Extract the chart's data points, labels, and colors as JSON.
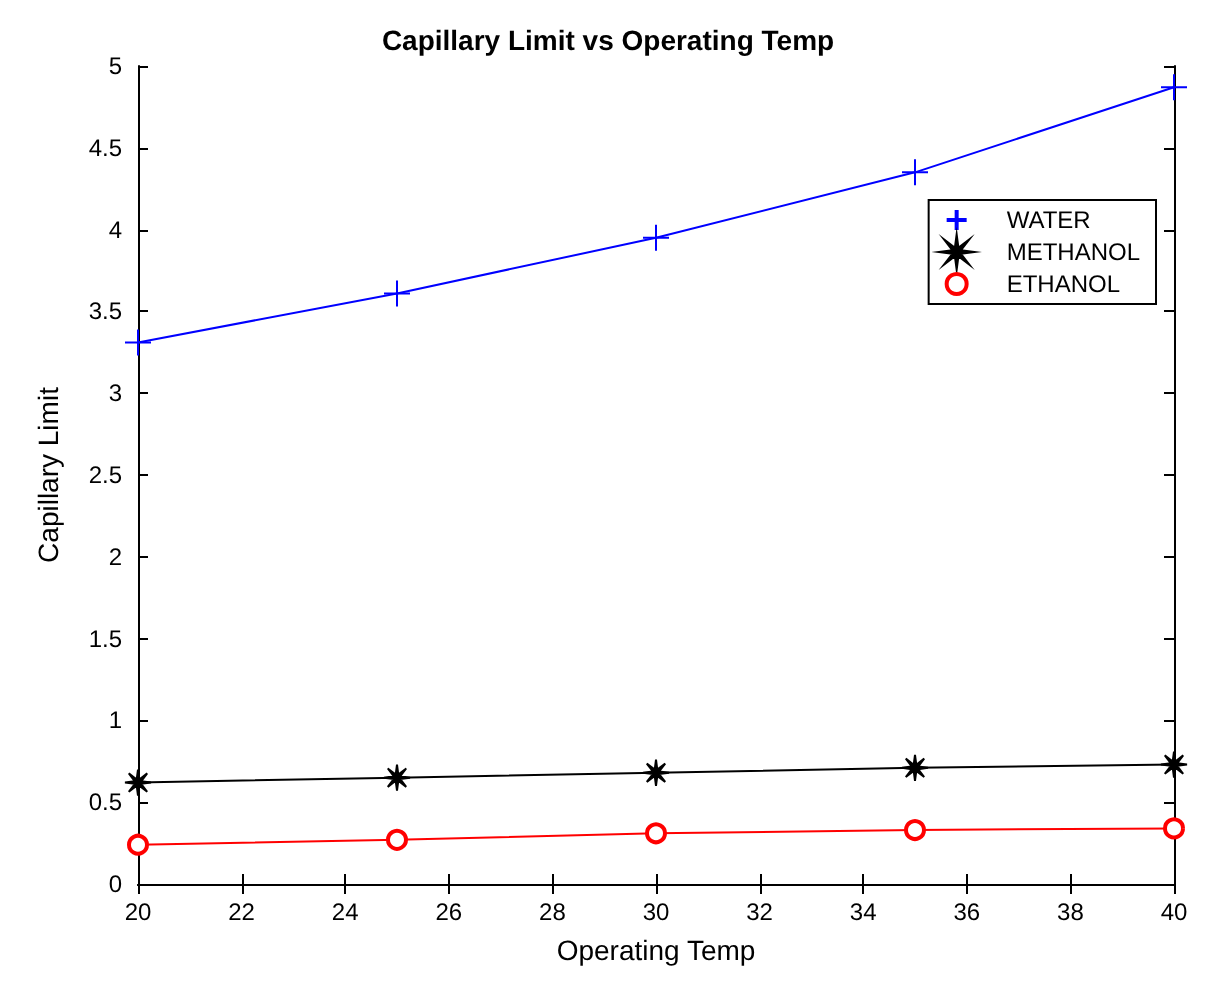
{
  "chart_data": {
    "type": "line",
    "title": "Capillary Limit vs Operating Temp",
    "xlabel": "Operating Temp",
    "ylabel": "Capillary Limit",
    "x": [
      20,
      25,
      30,
      35,
      40
    ],
    "series": [
      {
        "name": "WATER",
        "color": "#0000ff",
        "marker": "cross",
        "values": [
          3.31,
          3.61,
          3.95,
          4.35,
          4.87
        ]
      },
      {
        "name": "METHANOL",
        "color": "#000000",
        "marker": "star",
        "values": [
          0.62,
          0.65,
          0.68,
          0.71,
          0.73
        ]
      },
      {
        "name": "ETHANOL",
        "color": "#ff0000",
        "marker": "circle",
        "values": [
          0.24,
          0.27,
          0.31,
          0.33,
          0.34
        ]
      }
    ],
    "xlim": [
      20,
      40
    ],
    "xticks": [
      20,
      22,
      24,
      26,
      28,
      30,
      32,
      34,
      36,
      38,
      40
    ],
    "ylim": [
      0,
      5
    ],
    "yticks": [
      0,
      0.5,
      1,
      1.5,
      2,
      2.5,
      3,
      3.5,
      4,
      4.5,
      5
    ],
    "grid": false,
    "legend": "top right",
    "line_style": "solid"
  }
}
